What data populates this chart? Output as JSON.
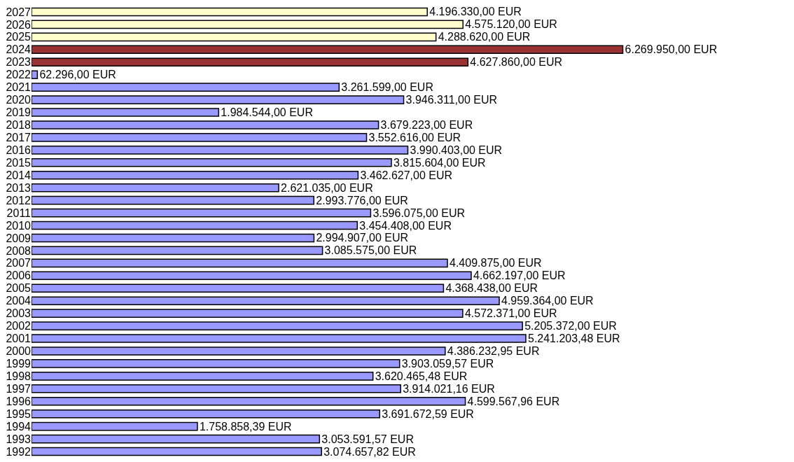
{
  "chart_data": {
    "type": "bar",
    "orientation": "horizontal",
    "tick_labels": "y",
    "categories": [
      "2027",
      "2026",
      "2025",
      "2024",
      "2023",
      "2022",
      "2021",
      "2020",
      "2019",
      "2018",
      "2017",
      "2016",
      "2015",
      "2014",
      "2013",
      "2012",
      "2011",
      "2010",
      "2009",
      "2008",
      "2007",
      "2006",
      "2005",
      "2004",
      "2003",
      "2002",
      "2001",
      "2000",
      "1999",
      "1998",
      "1997",
      "1996",
      "1995",
      "1994",
      "1993",
      "1992"
    ],
    "values": [
      4196330.0,
      4575120.0,
      4288620.0,
      6269950.0,
      4627860.0,
      62296.0,
      3261599.0,
      3946311.0,
      1984544.0,
      3679223.0,
      3552616.0,
      3990403.0,
      3815604.0,
      3462627.0,
      2621035.0,
      2993776.0,
      3596075.0,
      3454408.0,
      2994907.0,
      3085575.0,
      4409875.0,
      4662197.0,
      4368438.0,
      4959364.0,
      4572371.0,
      5205372.0,
      5241203.48,
      4386232.95,
      3903059.57,
      3620465.48,
      3914021.16,
      4599567.96,
      3691672.59,
      1758858.39,
      3053591.57,
      3074657.82
    ],
    "value_labels": [
      "4.196.330,00 EUR",
      "4.575.120,00 EUR",
      "4.288.620,00 EUR",
      "6.269.950,00 EUR",
      "4.627.860,00 EUR",
      "62.296,00 EUR",
      "3.261.599,00 EUR",
      "3.946.311,00 EUR",
      "1.984.544,00 EUR",
      "3.679.223,00 EUR",
      "3.552.616,00 EUR",
      "3.990.403,00 EUR",
      "3.815.604,00 EUR",
      "3.462.627,00 EUR",
      "2.621.035,00 EUR",
      "2.993.776,00 EUR",
      "3.596.075,00 EUR",
      "3.454.408,00 EUR",
      "2.994.907,00 EUR",
      "3.085.575,00 EUR",
      "4.409.875,00 EUR",
      "4.662.197,00 EUR",
      "4.368.438,00 EUR",
      "4.959.364,00 EUR",
      "4.572.371,00 EUR",
      "5.205.372,00 EUR",
      "5.241.203,48 EUR",
      "4.386.232,95 EUR",
      "3.903.059,57 EUR",
      "3.620.465,48 EUR",
      "3.914.021,16 EUR",
      "4.599.567,96 EUR",
      "3.691.672,59 EUR",
      "1.758.858,39 EUR",
      "3.053.591,57 EUR",
      "3.074.657,82 EUR"
    ],
    "colors": [
      "#ffffcc",
      "#ffffcc",
      "#ffffcc",
      "#993333",
      "#993333",
      "#9999ff",
      "#9999ff",
      "#9999ff",
      "#9999ff",
      "#9999ff",
      "#9999ff",
      "#9999ff",
      "#9999ff",
      "#9999ff",
      "#9999ff",
      "#9999ff",
      "#9999ff",
      "#9999ff",
      "#9999ff",
      "#9999ff",
      "#9999ff",
      "#9999ff",
      "#9999ff",
      "#9999ff",
      "#9999ff",
      "#9999ff",
      "#9999ff",
      "#9999ff",
      "#9999ff",
      "#9999ff",
      "#9999ff",
      "#9999ff",
      "#9999ff",
      "#9999ff",
      "#9999ff",
      "#9999ff"
    ]
  }
}
